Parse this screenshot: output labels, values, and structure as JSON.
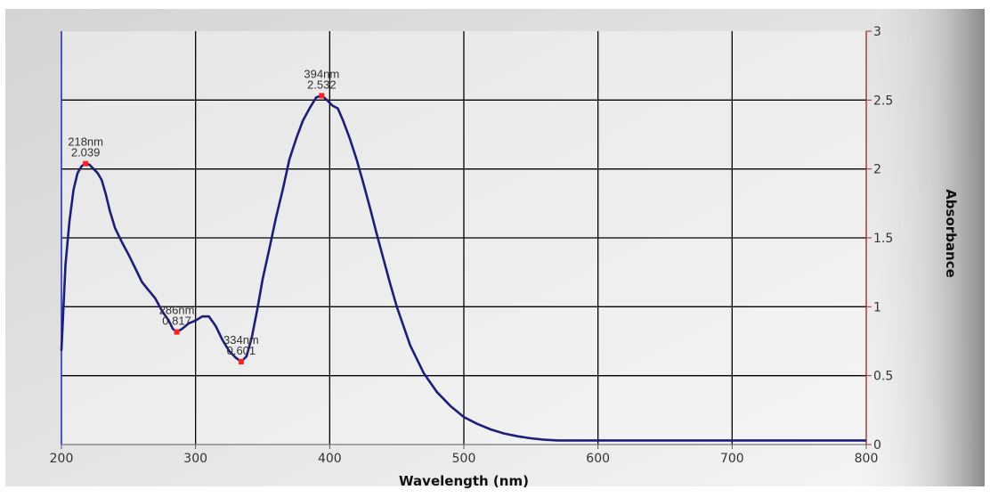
{
  "chart_data": {
    "type": "line",
    "xlabel": "Wavelength (nm)",
    "ylabel": "Absorbance",
    "xlim": [
      200,
      800
    ],
    "ylim": [
      0,
      3
    ],
    "x_ticks": [
      200,
      300,
      400,
      500,
      600,
      700,
      800
    ],
    "y_ticks": [
      0,
      0.5,
      1,
      1.5,
      2,
      2.5,
      3
    ],
    "grid": true,
    "colors": {
      "line": "#1c1e7e",
      "peak_marker": "#ff2020",
      "grid": "#000000",
      "left_axis": "#2233cc",
      "right_axis": "#993333",
      "plot_bg": "#ececec"
    },
    "series": [
      {
        "x": [
          200,
          203,
          206,
          209,
          212,
          215,
          218,
          221,
          224,
          227,
          230,
          233,
          236,
          240,
          245,
          250,
          255,
          260,
          265,
          270,
          275,
          280,
          283,
          286,
          290,
          295,
          300,
          305,
          310,
          315,
          320,
          325,
          330,
          334,
          338,
          342,
          346,
          350,
          355,
          360,
          365,
          370,
          375,
          380,
          385,
          390,
          394,
          398,
          402,
          406,
          410,
          415,
          420,
          425,
          430,
          435,
          440,
          445,
          450,
          460,
          470,
          480,
          490,
          500,
          510,
          520,
          530,
          540,
          550,
          560,
          570,
          580,
          600,
          620,
          650,
          700,
          750,
          800
        ],
        "y": [
          0.68,
          1.3,
          1.62,
          1.85,
          1.97,
          2.02,
          2.039,
          2.03,
          2.0,
          1.97,
          1.92,
          1.82,
          1.7,
          1.57,
          1.47,
          1.38,
          1.28,
          1.18,
          1.12,
          1.06,
          0.97,
          0.9,
          0.84,
          0.817,
          0.84,
          0.88,
          0.9,
          0.93,
          0.93,
          0.86,
          0.76,
          0.68,
          0.63,
          0.601,
          0.64,
          0.78,
          0.98,
          1.2,
          1.42,
          1.65,
          1.85,
          2.07,
          2.22,
          2.35,
          2.44,
          2.52,
          2.532,
          2.5,
          2.46,
          2.44,
          2.35,
          2.22,
          2.07,
          1.9,
          1.72,
          1.53,
          1.35,
          1.17,
          1.0,
          0.72,
          0.52,
          0.38,
          0.28,
          0.2,
          0.15,
          0.11,
          0.08,
          0.06,
          0.045,
          0.035,
          0.03,
          0.03,
          0.03,
          0.03,
          0.03,
          0.03,
          0.03,
          0.03
        ]
      }
    ],
    "annotations": [
      {
        "x": 218,
        "y": 2.039,
        "label_nm": "218nm",
        "label_val": "2.039"
      },
      {
        "x": 286,
        "y": 0.817,
        "label_nm": "286nm",
        "label_val": "0.817"
      },
      {
        "x": 334,
        "y": 0.601,
        "label_nm": "334nm",
        "label_val": "0.601"
      },
      {
        "x": 394,
        "y": 2.532,
        "label_nm": "394nm",
        "label_val": "2.532"
      }
    ]
  }
}
